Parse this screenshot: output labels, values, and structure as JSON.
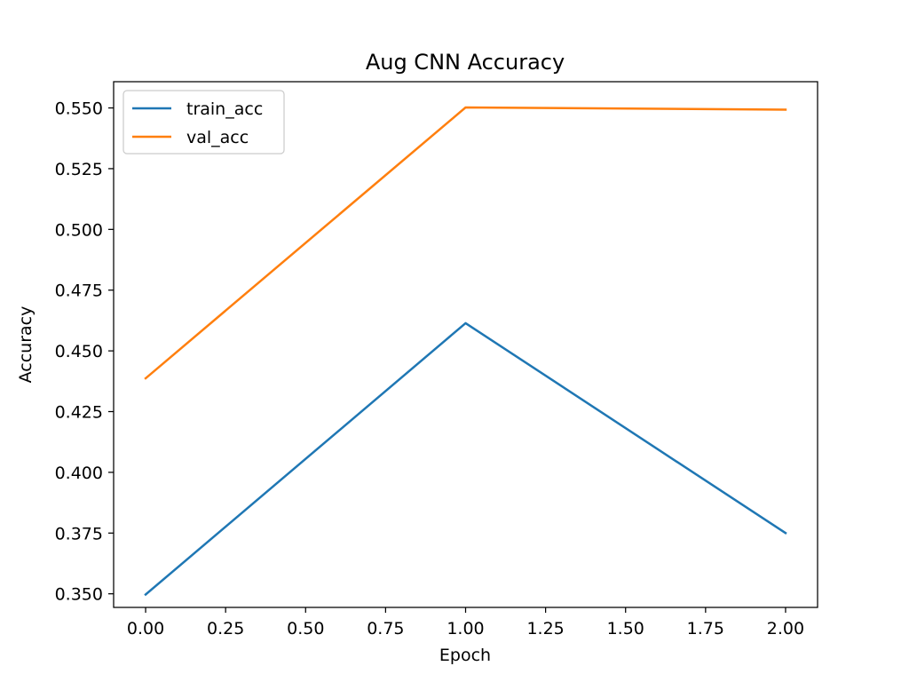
{
  "chart_data": {
    "type": "line",
    "title": "Aug CNN Accuracy",
    "xlabel": "Epoch",
    "ylabel": "Accuracy",
    "xlim": [
      -0.1,
      2.1
    ],
    "ylim": [
      0.3444,
      0.5608
    ],
    "x_ticks": [
      0.0,
      0.25,
      0.5,
      0.75,
      1.0,
      1.25,
      1.5,
      1.75,
      2.0
    ],
    "x_tick_labels": [
      "0.00",
      "0.25",
      "0.50",
      "0.75",
      "1.00",
      "1.25",
      "1.50",
      "1.75",
      "2.00"
    ],
    "y_ticks": [
      0.35,
      0.375,
      0.4,
      0.425,
      0.45,
      0.475,
      0.5,
      0.525,
      0.55
    ],
    "y_tick_labels": [
      "0.350",
      "0.375",
      "0.400",
      "0.425",
      "0.450",
      "0.475",
      "0.500",
      "0.525",
      "0.550"
    ],
    "x": [
      0,
      1,
      2
    ],
    "series": [
      {
        "name": "train_acc",
        "color": "#1f77b4",
        "values": [
          0.3497,
          0.4614,
          0.375
        ]
      },
      {
        "name": "val_acc",
        "color": "#ff7f0e",
        "values": [
          0.4387,
          0.5502,
          0.5493
        ]
      }
    ],
    "legend": "upper-left",
    "grid": false
  }
}
